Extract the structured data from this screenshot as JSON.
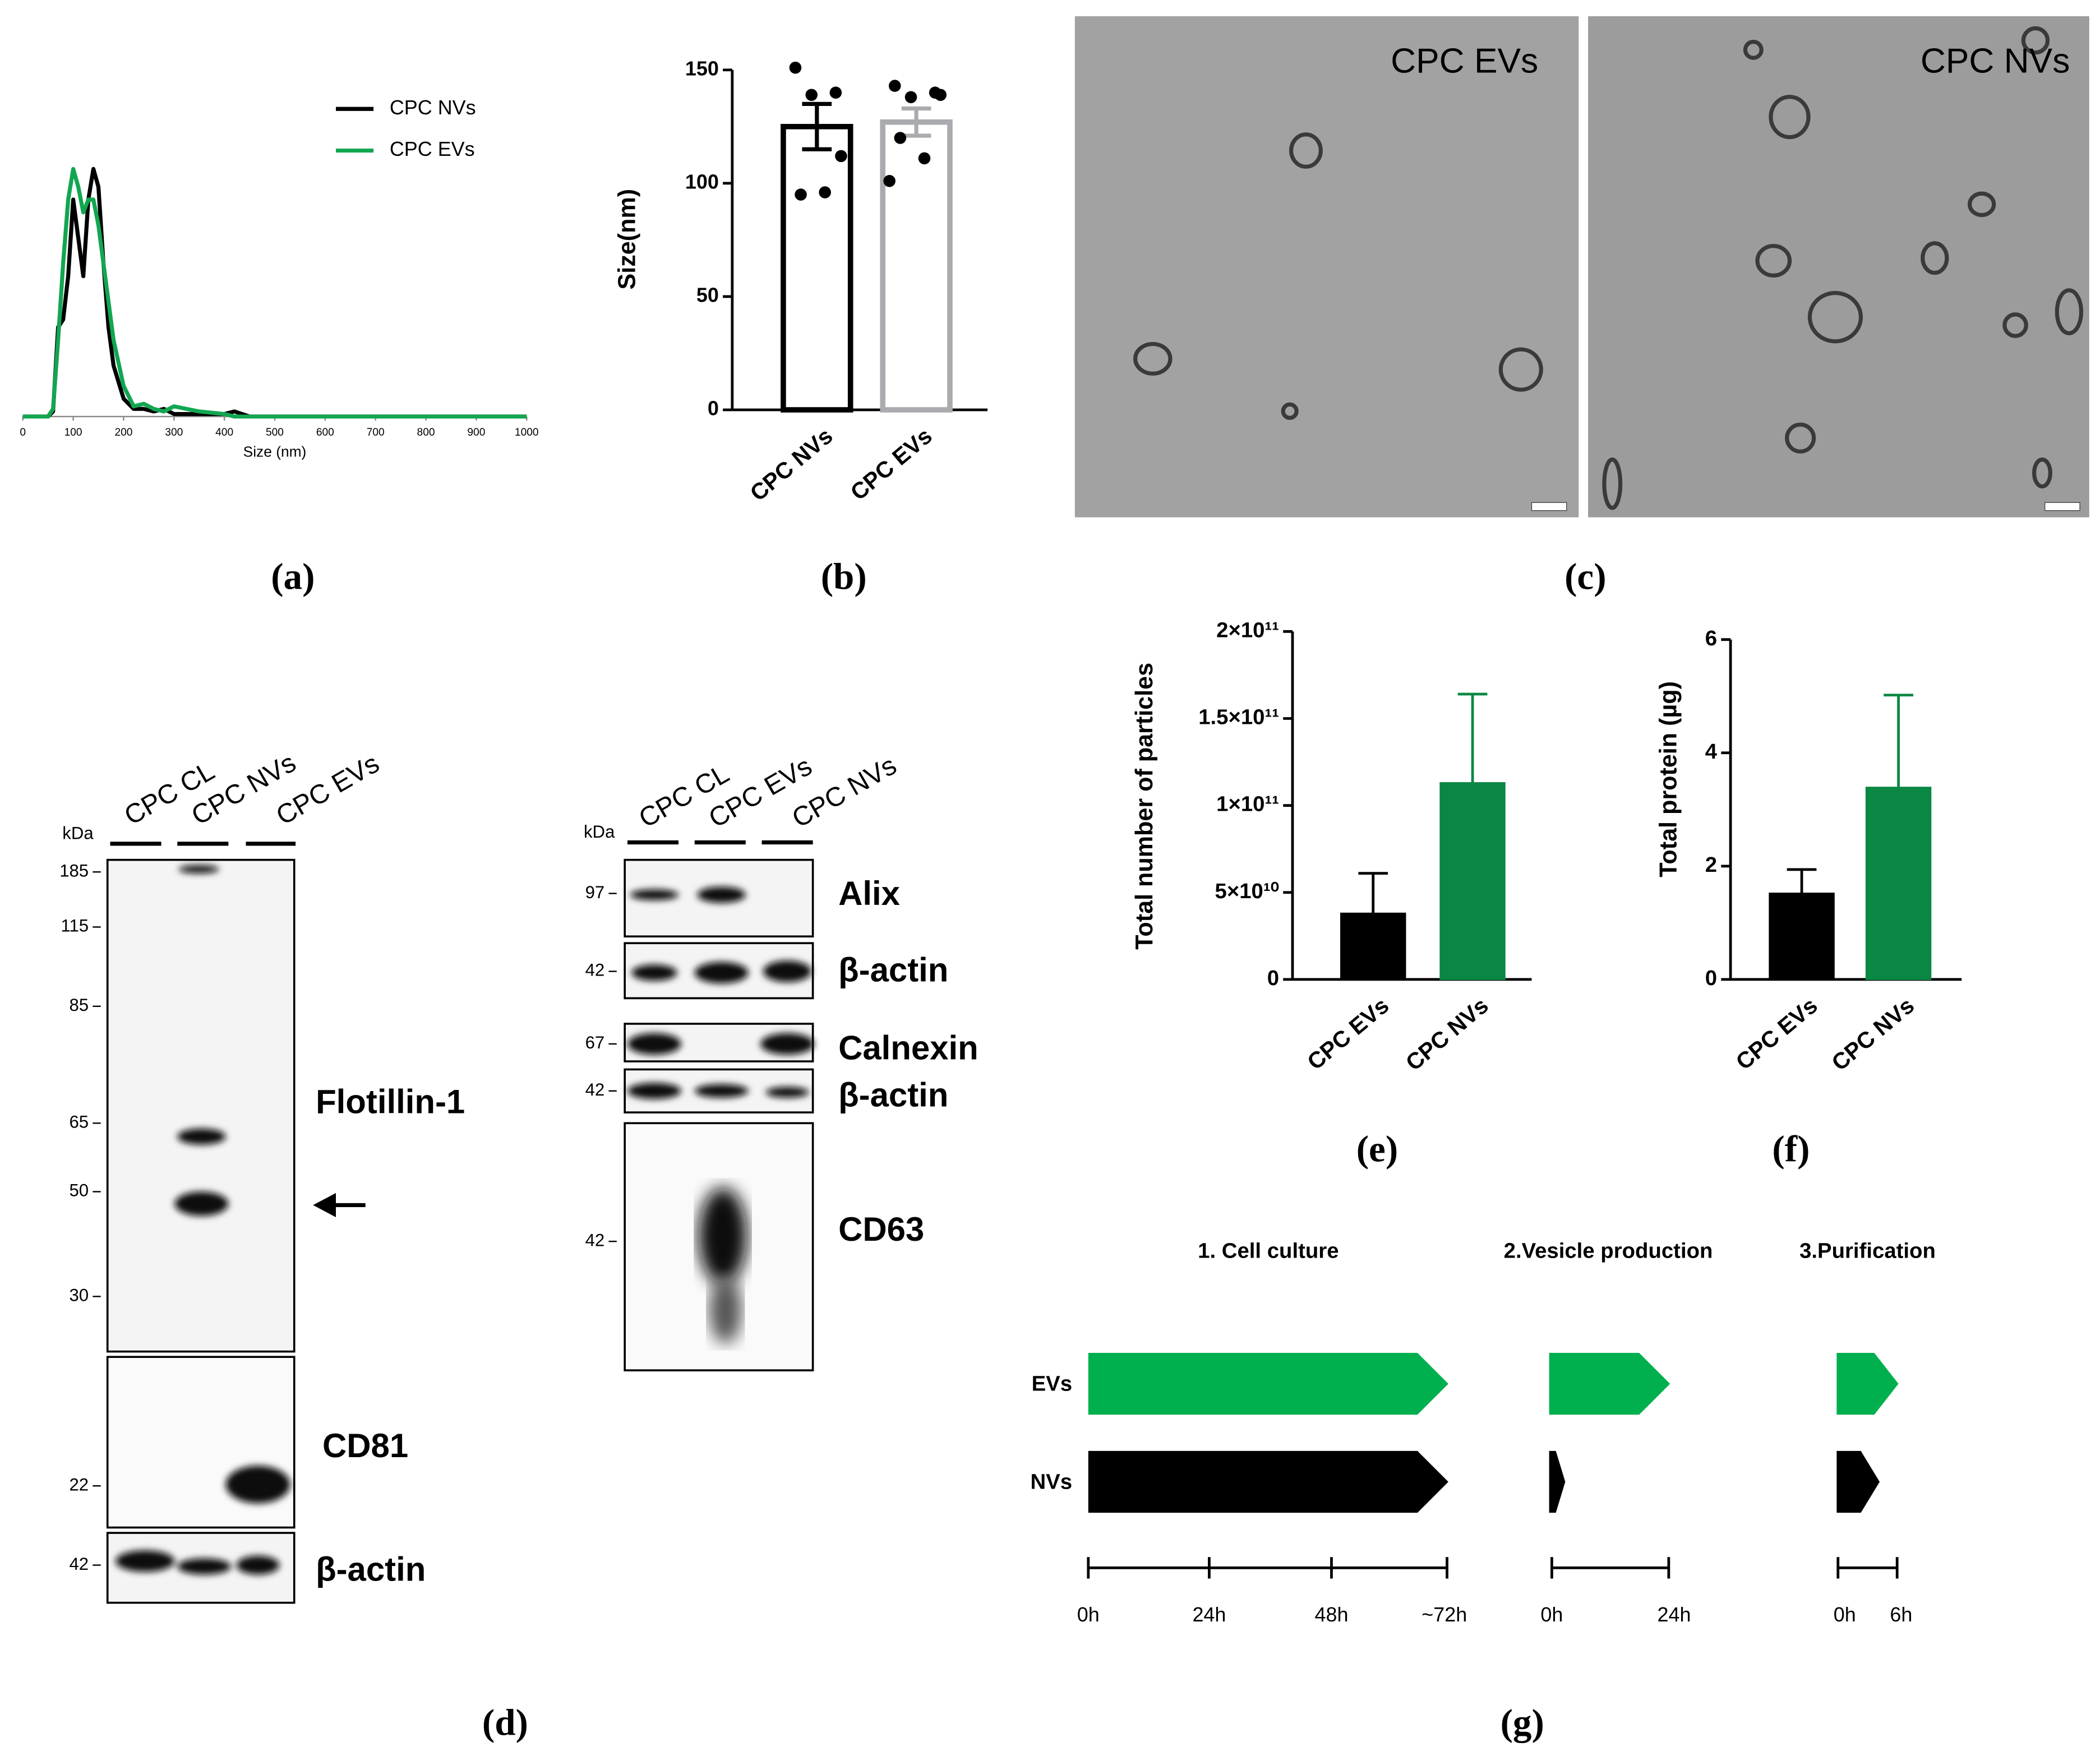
{
  "chart_data": [
    {
      "type": "line",
      "xlabel": "Size (nm)",
      "x": [
        0,
        50,
        60,
        70,
        80,
        90,
        100,
        110,
        120,
        130,
        140,
        150,
        160,
        170,
        180,
        200,
        220,
        240,
        260,
        280,
        300,
        350,
        400,
        420,
        450,
        500,
        1000
      ],
      "series": [
        {
          "name": "CPC NVs",
          "color": "#000000",
          "values": [
            0,
            0,
            0.02,
            0.35,
            0.38,
            0.55,
            0.85,
            0.7,
            0.55,
            0.85,
            0.97,
            0.9,
            0.6,
            0.35,
            0.2,
            0.07,
            0.03,
            0.03,
            0.02,
            0.03,
            0.01,
            0.01,
            0.01,
            0.02,
            0,
            0,
            0
          ]
        },
        {
          "name": "CPC EVs",
          "color": "#12a651",
          "values": [
            0,
            0,
            0.03,
            0.3,
            0.6,
            0.85,
            0.97,
            0.9,
            0.8,
            0.85,
            0.85,
            0.75,
            0.6,
            0.45,
            0.3,
            0.12,
            0.04,
            0.05,
            0.03,
            0.02,
            0.04,
            0.02,
            0.01,
            0,
            0,
            0,
            0
          ]
        }
      ],
      "xlim": [
        0,
        1000
      ],
      "xticks": [
        0,
        100,
        200,
        300,
        400,
        500,
        600,
        700,
        800,
        900,
        1000
      ],
      "ylim": [
        0,
        1
      ],
      "legend": "upper right"
    },
    {
      "type": "bar",
      "ylabel": "Size(nm)",
      "categories": [
        "CPC NVs",
        "CPC EVs"
      ],
      "values": [
        125,
        127
      ],
      "errors": [
        10,
        6
      ],
      "error_direction": "both",
      "points": [
        [
          151,
          140,
          139,
          112,
          95,
          96
        ],
        [
          143,
          140,
          138,
          139,
          120,
          111,
          101
        ]
      ],
      "colors": [
        "#000000",
        "#a9abae"
      ],
      "fill": false,
      "ylim": [
        0,
        150
      ],
      "yticks": [
        0,
        50,
        100,
        150
      ]
    },
    {
      "type": "bar",
      "ylabel": "Total number of particles",
      "categories": [
        "CPC EVs",
        "CPC NVs"
      ],
      "values": [
        38000000000,
        113000000000
      ],
      "errors": [
        23000000000,
        51000000000
      ],
      "error_direction": "up",
      "colors": [
        "#000000",
        "#0a8743"
      ],
      "fill": true,
      "ylim": [
        0,
        200000000000
      ],
      "yticks": [
        0,
        {
          "value": 50000000000,
          "label": "5×10¹⁰"
        },
        {
          "value": 100000000000,
          "label": "1×10¹¹"
        },
        {
          "value": 150000000000,
          "label": "1.5×10¹¹"
        },
        {
          "value": 200000000000,
          "label": "2×10¹¹"
        }
      ]
    },
    {
      "type": "bar",
      "ylabel": "Total protein (µg)",
      "categories": [
        "CPC EVs",
        "CPC NVs"
      ],
      "values": [
        1.52,
        3.39
      ],
      "errors": [
        0.42,
        1.63
      ],
      "error_direction": "up",
      "colors": [
        "#000000",
        "#0a8743"
      ],
      "fill": true,
      "ylim": [
        0,
        6
      ],
      "yticks": [
        0,
        2,
        4,
        6
      ]
    }
  ],
  "panel_labels": [
    "(a)",
    "(b)",
    "(c)",
    "(d)",
    "(e)",
    "(f)",
    "(g)"
  ],
  "tem": {
    "images": [
      "CPC EVs",
      "CPC NVs"
    ]
  },
  "blots": [
    {
      "unit": "kDa",
      "lanes": [
        "CPC CL",
        "CPC NVs",
        "CPC EVs"
      ],
      "markers": [
        185,
        115,
        85,
        65,
        50,
        30,
        22,
        42
      ],
      "proteins": [
        "Flotillin-1",
        "CD81",
        "β-actin"
      ]
    },
    {
      "unit": "kDa",
      "lanes": [
        "CPC CL",
        "CPC EVs",
        "CPC NVs"
      ],
      "markers": [
        97,
        42,
        67,
        42,
        42
      ],
      "proteins": [
        "Alix",
        "β-actin",
        "Calnexin",
        "β-actin",
        "CD63"
      ]
    }
  ],
  "timeline": {
    "stages": [
      {
        "title": "1. Cell culture",
        "ticks": [
          "0h",
          "24h",
          "48h",
          "~72h"
        ]
      },
      {
        "title": "2.Vesicle production",
        "ticks": [
          "0h",
          "24h"
        ]
      },
      {
        "title": "3.Purification",
        "ticks": [
          "0h",
          "6h"
        ]
      }
    ],
    "rows": [
      "EVs",
      "NVs"
    ]
  }
}
